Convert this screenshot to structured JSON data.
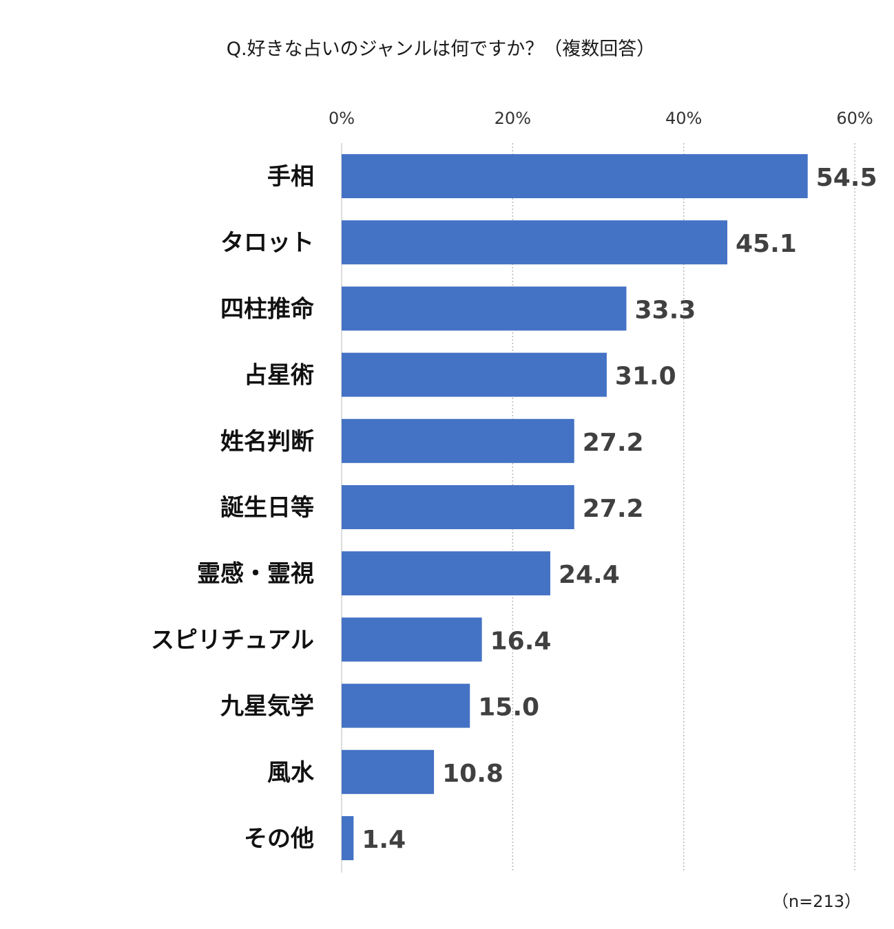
{
  "chart_data": {
    "type": "bar",
    "orientation": "horizontal",
    "title": "Q.好きな占いのジャンルは何ですか？（複数回答）",
    "note": "（n=213）",
    "xlim": [
      0,
      60
    ],
    "ticks": [
      0,
      20,
      40,
      60
    ],
    "tick_labels": [
      "0%",
      "20%",
      "40%",
      "60%"
    ],
    "grid": true,
    "bar_color": "#4472C4",
    "categories": [
      "手相",
      "タロット",
      "四柱推命",
      "占星術",
      "姓名判断",
      "誕生日等",
      "霊感・霊視",
      "スピリチュアル",
      "九星気学",
      "風水",
      "その他"
    ],
    "values": [
      54.5,
      45.1,
      33.3,
      31.0,
      27.2,
      27.2,
      24.4,
      16.4,
      15.0,
      10.8,
      1.4
    ],
    "value_labels": [
      "54.5",
      "45.1",
      "33.3",
      "31.0",
      "27.2",
      "27.2",
      "24.4",
      "16.4",
      "15.0",
      "10.8",
      "1.4"
    ]
  }
}
